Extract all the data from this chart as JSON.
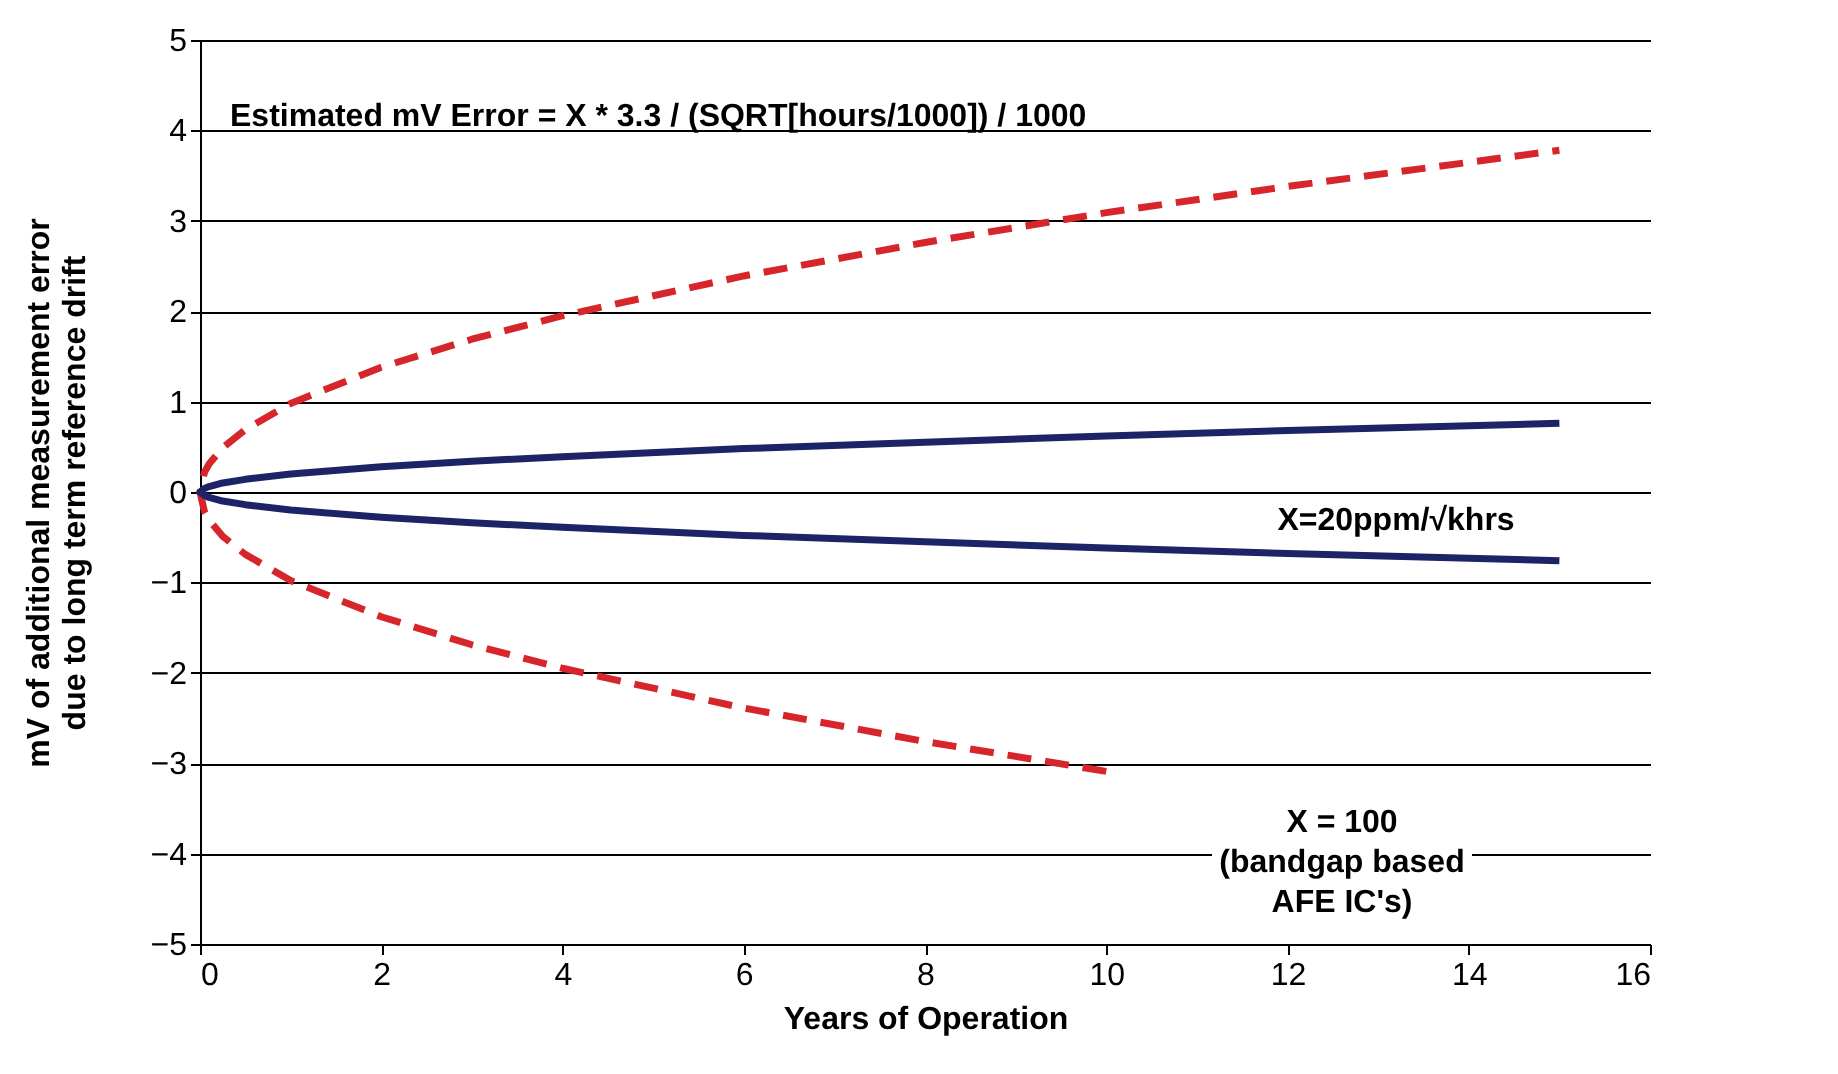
{
  "chart_data": {
    "type": "line",
    "xlabel": "Years of Operation",
    "ylabel": "mV of additional measurement error\ndue to long term reference drift",
    "series": [
      {
        "color": "#d7262b",
        "line_style": "dashed",
        "x": [
          10,
          8,
          6,
          4,
          3,
          2,
          1,
          0.5,
          0.25,
          0.1,
          0.05,
          0,
          0.05,
          0.1,
          0.25,
          0.5,
          1,
          2,
          3,
          4,
          6,
          8,
          10,
          12,
          15
        ],
        "values": [
          -3.09,
          -2.76,
          -2.39,
          -1.95,
          -1.69,
          -1.38,
          -0.98,
          -0.69,
          -0.49,
          -0.31,
          -0.22,
          0,
          0.22,
          0.31,
          0.49,
          0.69,
          0.98,
          1.38,
          1.69,
          1.95,
          2.39,
          2.76,
          3.09,
          3.38,
          3.78
        ]
      },
      {
        "color": "#1c2366",
        "line_style": "solid",
        "x": [
          15,
          12,
          10,
          8,
          6,
          4,
          3,
          2,
          1,
          0.5,
          0.25,
          0.1,
          0.05,
          0,
          0.05,
          0.1,
          0.25,
          0.5,
          1,
          2,
          3,
          4,
          6,
          8,
          10,
          12,
          15
        ],
        "values": [
          -0.76,
          -0.68,
          -0.62,
          -0.55,
          -0.48,
          -0.39,
          -0.34,
          -0.28,
          -0.2,
          -0.14,
          -0.1,
          -0.06,
          -0.04,
          0,
          0.04,
          0.06,
          0.1,
          0.14,
          0.2,
          0.28,
          0.34,
          0.39,
          0.48,
          0.55,
          0.62,
          0.68,
          0.76
        ]
      }
    ],
    "xlim": [
      0,
      16
    ],
    "xticks": [
      0,
      2,
      4,
      6,
      8,
      10,
      12,
      14,
      16
    ],
    "ylim": [
      -5,
      5
    ],
    "yticks": [
      -5,
      -4,
      -3,
      -2,
      -1,
      0,
      1,
      2,
      3,
      4,
      5
    ],
    "grid": "y",
    "annotations": [
      "Estimated mV Error  = X * 3.3 / (SQRT[hours/1000]) / 1000",
      "X=20ppm/√khrs",
      "X = 100\n(bandgap based\nAFE IC's)"
    ]
  }
}
